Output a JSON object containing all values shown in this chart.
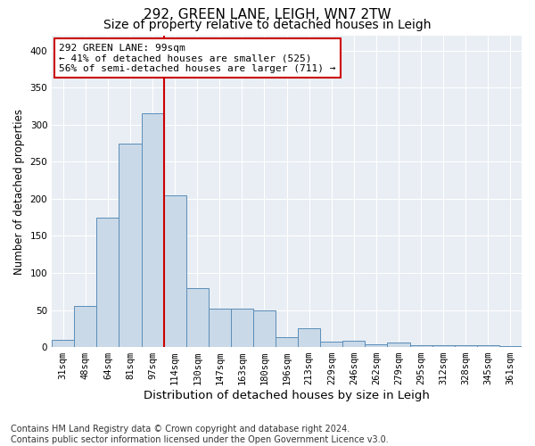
{
  "title1": "292, GREEN LANE, LEIGH, WN7 2TW",
  "title2": "Size of property relative to detached houses in Leigh",
  "xlabel": "Distribution of detached houses by size in Leigh",
  "ylabel": "Number of detached properties",
  "categories": [
    "31sqm",
    "48sqm",
    "64sqm",
    "81sqm",
    "97sqm",
    "114sqm",
    "130sqm",
    "147sqm",
    "163sqm",
    "180sqm",
    "196sqm",
    "213sqm",
    "229sqm",
    "246sqm",
    "262sqm",
    "279sqm",
    "295sqm",
    "312sqm",
    "328sqm",
    "345sqm",
    "361sqm"
  ],
  "values": [
    10,
    55,
    175,
    275,
    315,
    205,
    80,
    52,
    52,
    50,
    13,
    25,
    7,
    8,
    4,
    6,
    3,
    2,
    2,
    2,
    1
  ],
  "bar_color": "#c9d9e8",
  "bar_edge_color": "#5b8db8",
  "marker_line_index": 5,
  "marker_label": "292 GREEN LANE: 99sqm",
  "annotation_line1": "← 41% of detached houses are smaller (525)",
  "annotation_line2": "56% of semi-detached houses are larger (711) →",
  "annotation_box_color": "#ffffff",
  "annotation_box_edge": "#cc0000",
  "marker_line_color": "#cc0000",
  "ylim": [
    0,
    420
  ],
  "yticks": [
    0,
    50,
    100,
    150,
    200,
    250,
    300,
    350,
    400
  ],
  "background_color": "#e8eef4",
  "footer_line1": "Contains HM Land Registry data © Crown copyright and database right 2024.",
  "footer_line2": "Contains public sector information licensed under the Open Government Licence v3.0.",
  "title1_fontsize": 11,
  "title2_fontsize": 10,
  "xlabel_fontsize": 9.5,
  "ylabel_fontsize": 8.5,
  "tick_fontsize": 7.5,
  "footer_fontsize": 7,
  "annotation_fontsize": 8
}
